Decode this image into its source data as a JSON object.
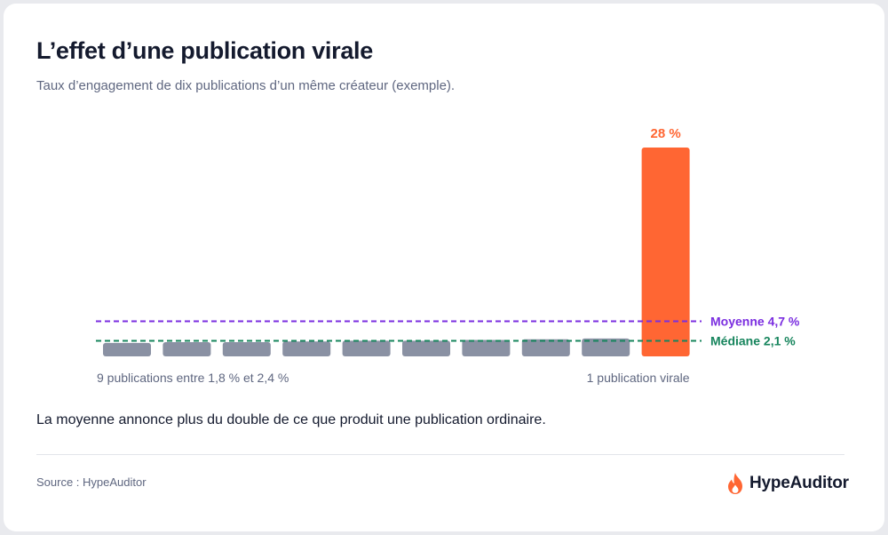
{
  "title": "L’effet d’une publication virale",
  "subtitle": "Taux d’engagement de dix publications d’un même créateur (exemple).",
  "caption": "La moyenne annonce plus du double de ce que produit une publication ordinaire.",
  "source": "Source : HypeAuditor",
  "brand": {
    "name": "HypeAuditor",
    "icon": "flame-icon"
  },
  "colors": {
    "ordinary_bar": "#8a91a3",
    "viral_bar": "#ff6633",
    "mean_line": "#7b2ee0",
    "median_line": "#17855d"
  },
  "chart_data": {
    "type": "bar",
    "values": [
      1.8,
      1.9,
      1.9,
      2.0,
      2.1,
      2.1,
      2.2,
      2.3,
      2.4,
      28
    ],
    "highlight_index": 9,
    "ylim": [
      0,
      28
    ],
    "data_labels": {
      "9": "28 %"
    },
    "reference_lines": [
      {
        "label": "Moyenne 4,7 %",
        "value": 4.7,
        "style": "dashed",
        "color": "#7b2ee0"
      },
      {
        "label": "Médiane 2,1 %",
        "value": 2.1,
        "style": "dashed",
        "color": "#17855d"
      }
    ],
    "group_labels": [
      {
        "text": "9 publications entre 1,8 % et 2,4 %",
        "align": "left"
      },
      {
        "text": "1 publication virale",
        "align": "right"
      }
    ],
    "grid": false,
    "legend": "none"
  }
}
